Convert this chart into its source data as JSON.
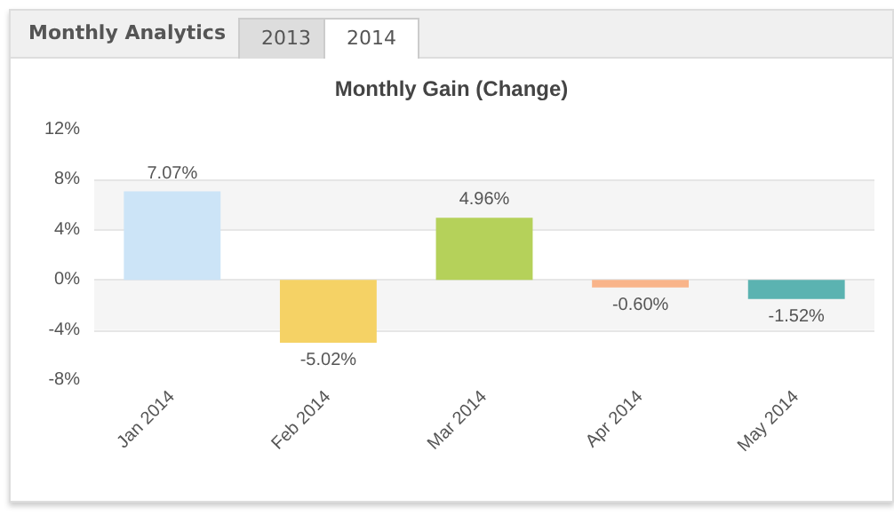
{
  "chart_data": {
    "type": "bar",
    "title": "Monthly Gain (Change)",
    "annotations": [
      "Monthly Analytics",
      "2013",
      "2014"
    ],
    "categories": [
      "Jan 2014",
      "Feb 2014",
      "Mar 2014",
      "Apr 2014",
      "May 2014"
    ],
    "values": [
      7.07,
      -5.02,
      4.96,
      -0.6,
      -1.52
    ],
    "colors": [
      "#cce4f7",
      "#f5d265",
      "#b5d15a",
      "#f9b48a",
      "#5bb3b1"
    ],
    "value_labels": [
      "7.07%",
      "-5.02%",
      "4.96%",
      "-0.60%",
      "-1.52%"
    ],
    "ylim": [
      -8,
      12
    ],
    "yticks": [
      {
        "value": -8,
        "label": "-8%"
      },
      {
        "value": -4,
        "label": "-4%"
      },
      {
        "value": 0,
        "label": "0%"
      },
      {
        "value": 4,
        "label": "4%"
      },
      {
        "value": 8,
        "label": "8%"
      },
      {
        "value": 12,
        "label": "12%"
      }
    ],
    "grid": "y"
  }
}
